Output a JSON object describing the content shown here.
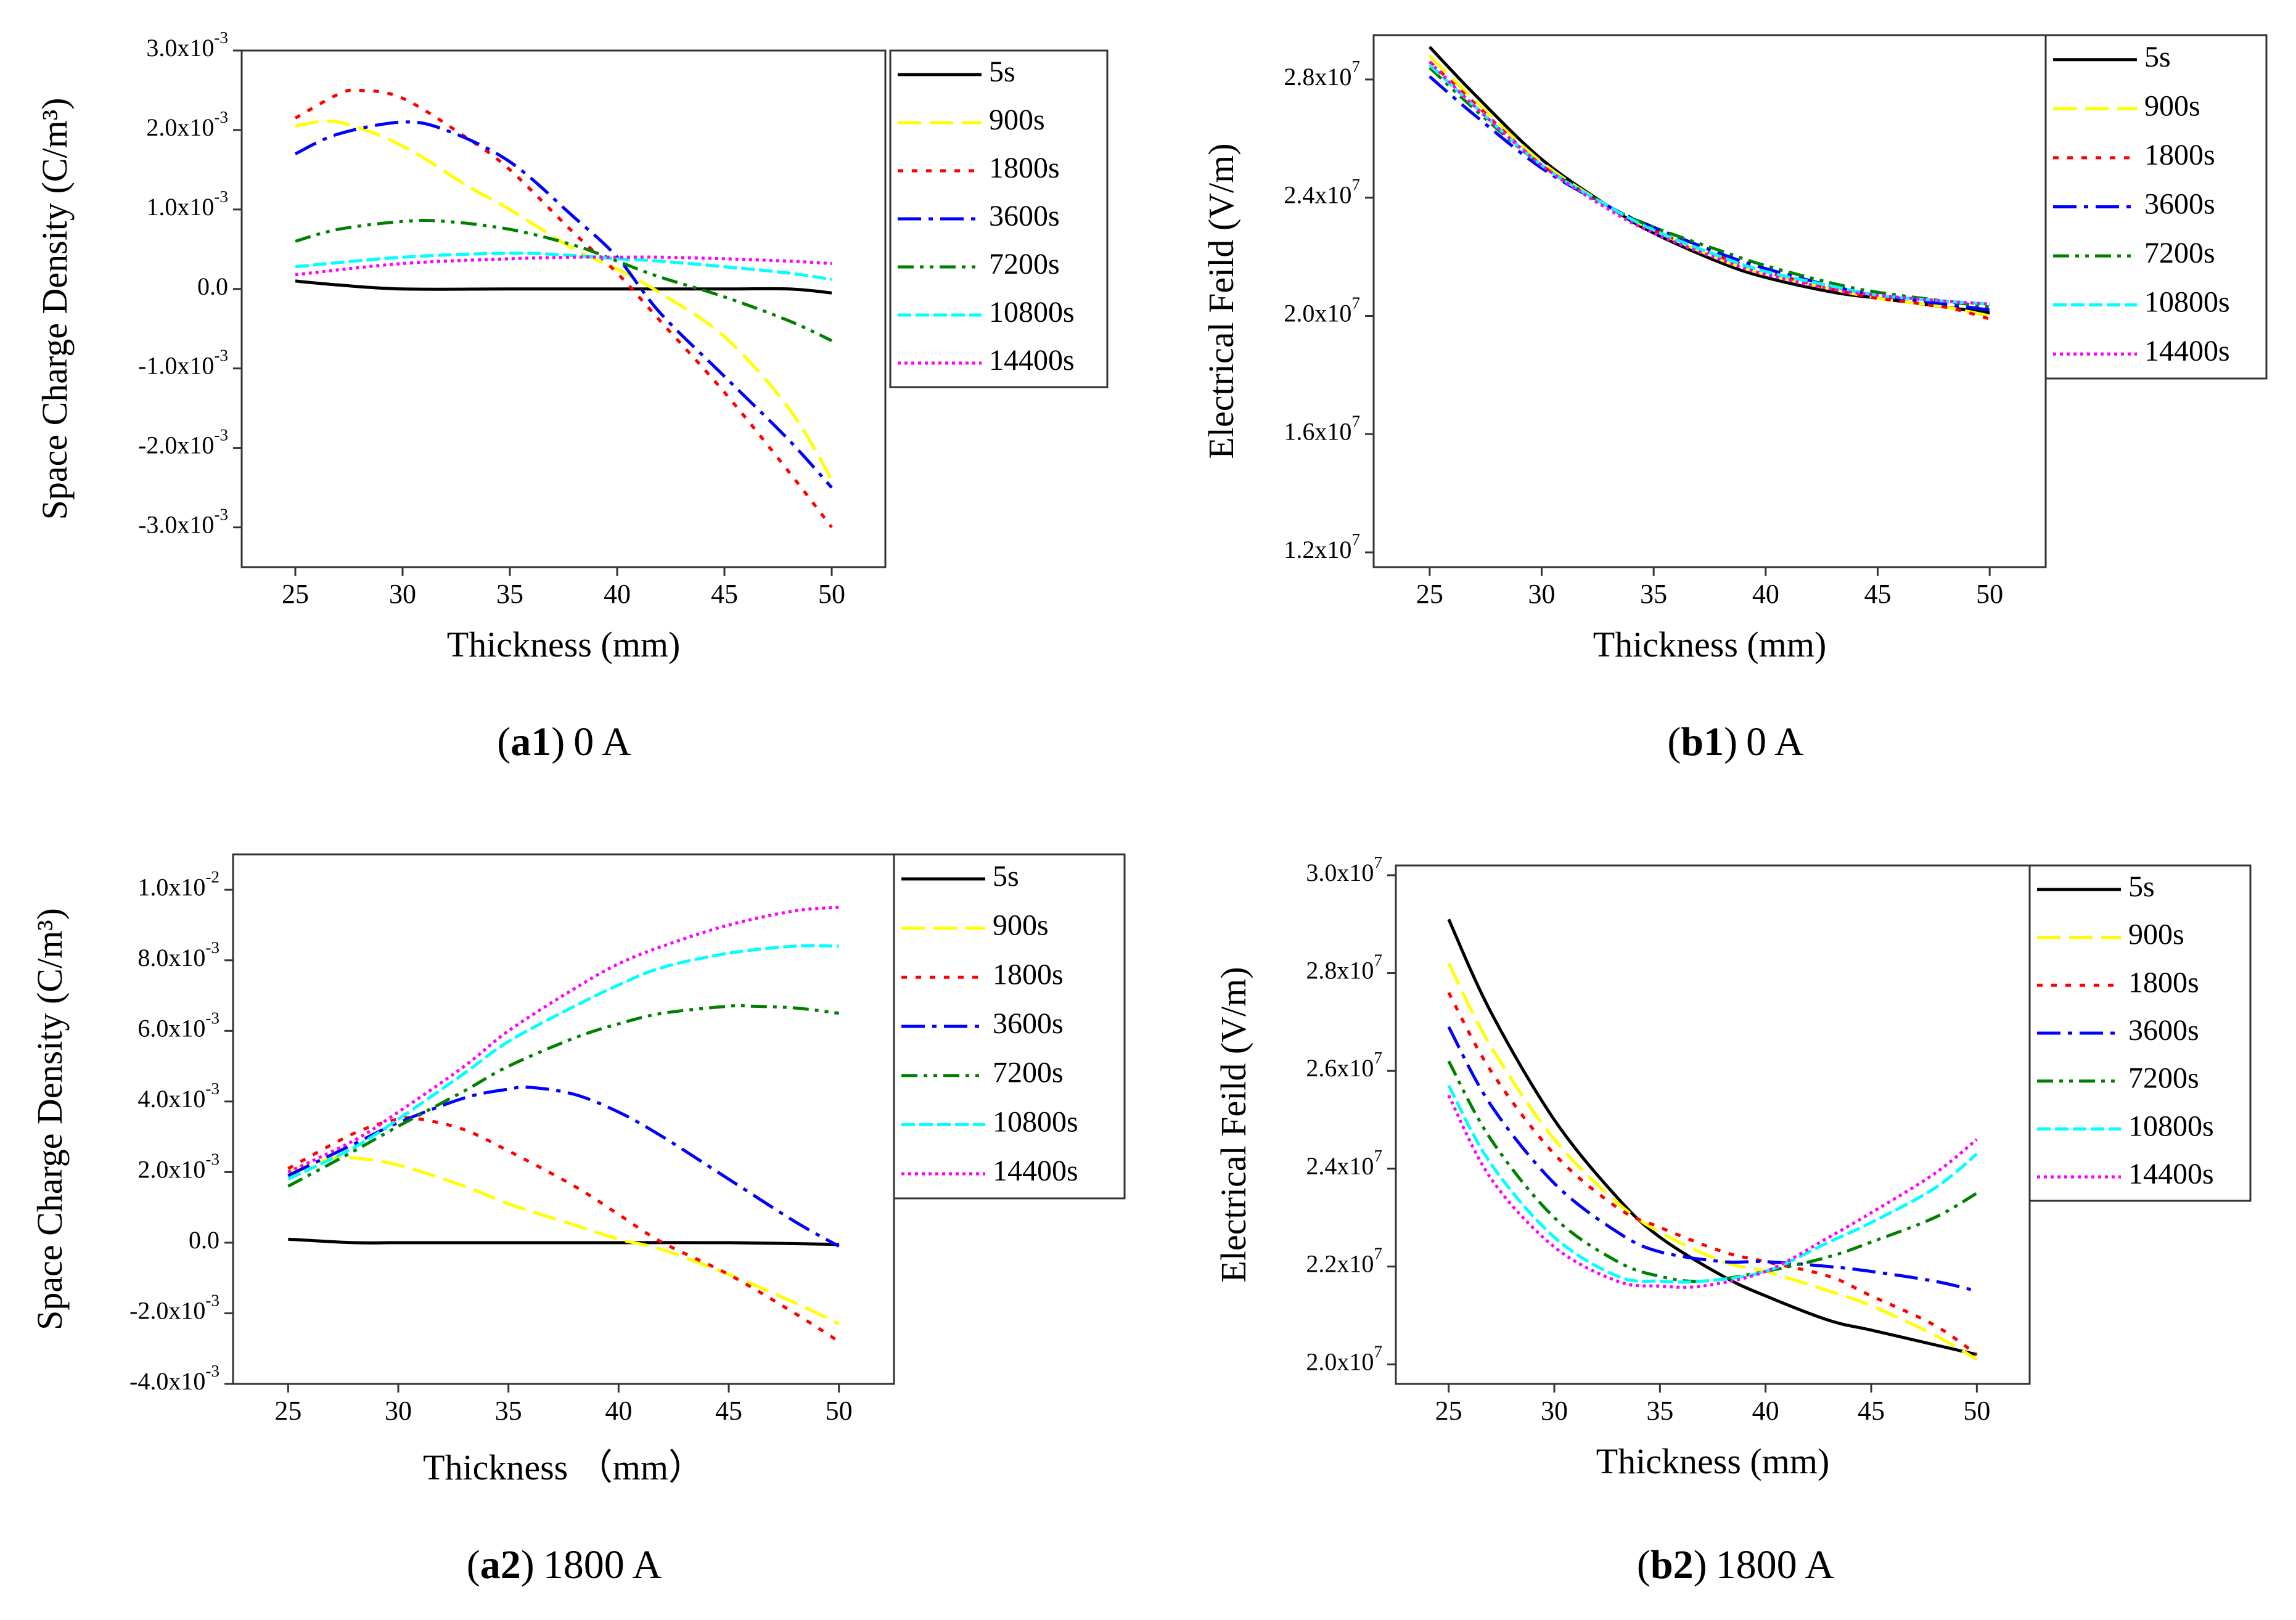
{
  "colors": {
    "5s": "#000000",
    "900s": "#ffff00",
    "1800s": "#ff0000",
    "3600s": "#0000ff",
    "7200s": "#008000",
    "10800s": "#00ffff",
    "14400s": "#ff00ff"
  },
  "chart_data": [
    {
      "id": "a1",
      "type": "line",
      "caption_bold": "a1",
      "caption_rest": "0 A",
      "caption_open": "(",
      "caption_close": ")",
      "xlabel": "Thickness (mm)",
      "ylabel": "Space Charge Density (C/m³)",
      "xlim": [
        22.5,
        52.5
      ],
      "ylim": [
        -3.5,
        3.0
      ],
      "y_scale_note": "values in units of 1e-3",
      "x_ticks": [
        25,
        30,
        35,
        40,
        45,
        50
      ],
      "x_tick_labels": [
        "25",
        "30",
        "35",
        "40",
        "45",
        "50"
      ],
      "y_ticks": [
        3,
        2,
        1,
        0,
        -1,
        -2,
        -3
      ],
      "y_tick_labels": [
        "3.0x10-3",
        "2.0x10-3",
        "1.0x10-3",
        "0.0",
        "-1.0x10-3",
        "-2.0x10-3",
        "-3.0x10-3"
      ],
      "legend": [
        "5s",
        "900s",
        "1800s",
        "3600s",
        "7200s",
        "10800s",
        "14400s"
      ],
      "series": [
        {
          "name": "5s",
          "x": [
            25,
            27,
            30,
            35,
            40,
            45,
            48,
            50
          ],
          "values": [
            0.1,
            0.05,
            0.0,
            0.0,
            0.0,
            0.0,
            0.0,
            -0.05
          ]
        },
        {
          "name": "900s",
          "x": [
            25,
            27,
            30,
            33,
            35,
            38,
            40,
            42,
            45,
            48,
            50
          ],
          "values": [
            2.05,
            2.1,
            1.8,
            1.3,
            1.0,
            0.5,
            0.25,
            -0.05,
            -0.6,
            -1.5,
            -2.4
          ]
        },
        {
          "name": "1800s",
          "x": [
            25,
            27,
            28,
            30,
            33,
            35,
            38,
            40,
            42,
            45,
            48,
            50
          ],
          "values": [
            2.15,
            2.45,
            2.5,
            2.4,
            1.9,
            1.5,
            0.7,
            0.2,
            -0.4,
            -1.3,
            -2.3,
            -3.0
          ]
        },
        {
          "name": "3600s",
          "x": [
            25,
            27,
            30,
            32,
            35,
            38,
            40,
            42,
            45,
            48,
            50
          ],
          "values": [
            1.7,
            1.95,
            2.1,
            2.0,
            1.6,
            0.9,
            0.4,
            -0.3,
            -1.1,
            -1.9,
            -2.5
          ]
        },
        {
          "name": "7200s",
          "x": [
            25,
            27,
            30,
            32,
            35,
            38,
            40,
            42,
            45,
            48,
            50
          ],
          "values": [
            0.6,
            0.75,
            0.85,
            0.85,
            0.75,
            0.55,
            0.35,
            0.15,
            -0.1,
            -0.4,
            -0.65
          ]
        },
        {
          "name": "10800s",
          "x": [
            25,
            30,
            35,
            38,
            40,
            42,
            45,
            48,
            50
          ],
          "values": [
            0.28,
            0.4,
            0.45,
            0.42,
            0.38,
            0.35,
            0.28,
            0.2,
            0.12
          ]
        },
        {
          "name": "14400s",
          "x": [
            25,
            30,
            35,
            38,
            40,
            42,
            45,
            48,
            50
          ],
          "values": [
            0.18,
            0.32,
            0.38,
            0.4,
            0.4,
            0.4,
            0.38,
            0.35,
            0.32
          ]
        }
      ]
    },
    {
      "id": "b1",
      "type": "line",
      "caption_bold": "b1",
      "caption_rest": "0 A",
      "caption_open": "(",
      "caption_close": ")",
      "xlabel": "Thickness (mm)",
      "ylabel": "Electrical Feild (V/m)",
      "xlim": [
        22.5,
        52.5
      ],
      "ylim": [
        1.15,
        2.95
      ],
      "y_scale_note": "values in units of 1e7",
      "x_ticks": [
        25,
        30,
        35,
        40,
        45,
        50
      ],
      "x_tick_labels": [
        "25",
        "30",
        "35",
        "40",
        "45",
        "50"
      ],
      "y_ticks": [
        2.8,
        2.4,
        2.0,
        1.6,
        1.2
      ],
      "y_tick_labels": [
        "2.8x107",
        "2.4x107",
        "2.0x107",
        "1.6x107",
        "1.2x107"
      ],
      "legend": [
        "5s",
        "900s",
        "1800s",
        "3600s",
        "7200s",
        "10800s",
        "14400s"
      ],
      "series": [
        {
          "name": "5s",
          "x": [
            25,
            27,
            30,
            33,
            35,
            38,
            40,
            43,
            45,
            48,
            50
          ],
          "values": [
            2.91,
            2.75,
            2.53,
            2.37,
            2.28,
            2.18,
            2.13,
            2.08,
            2.06,
            2.03,
            2.01
          ]
        },
        {
          "name": "900s",
          "x": [
            25,
            27,
            30,
            33,
            35,
            38,
            40,
            43,
            45,
            48,
            50
          ],
          "values": [
            2.88,
            2.73,
            2.52,
            2.37,
            2.29,
            2.19,
            2.14,
            2.09,
            2.06,
            2.03,
            2.0
          ]
        },
        {
          "name": "1800s",
          "x": [
            25,
            27,
            30,
            33,
            35,
            38,
            40,
            43,
            45,
            48,
            50
          ],
          "values": [
            2.86,
            2.72,
            2.51,
            2.37,
            2.29,
            2.2,
            2.15,
            2.09,
            2.06,
            2.03,
            1.99
          ]
        },
        {
          "name": "3600s",
          "x": [
            25,
            27,
            30,
            33,
            35,
            38,
            40,
            43,
            45,
            48,
            50
          ],
          "values": [
            2.81,
            2.68,
            2.5,
            2.37,
            2.3,
            2.21,
            2.16,
            2.1,
            2.07,
            2.04,
            2.02
          ]
        },
        {
          "name": "7200s",
          "x": [
            25,
            27,
            30,
            33,
            35,
            38,
            40,
            43,
            45,
            48,
            50
          ],
          "values": [
            2.84,
            2.7,
            2.51,
            2.37,
            2.3,
            2.22,
            2.17,
            2.11,
            2.08,
            2.05,
            2.03
          ]
        },
        {
          "name": "10800s",
          "x": [
            25,
            27,
            30,
            33,
            35,
            38,
            40,
            43,
            45,
            48,
            50
          ],
          "values": [
            2.85,
            2.71,
            2.51,
            2.37,
            2.29,
            2.2,
            2.15,
            2.1,
            2.07,
            2.05,
            2.04
          ]
        },
        {
          "name": "14400s",
          "x": [
            25,
            27,
            30,
            33,
            35,
            38,
            40,
            43,
            45,
            48,
            50
          ],
          "values": [
            2.86,
            2.71,
            2.51,
            2.36,
            2.28,
            2.19,
            2.14,
            2.09,
            2.07,
            2.05,
            2.04
          ]
        }
      ]
    },
    {
      "id": "a2",
      "type": "line",
      "caption_bold": "a2",
      "caption_rest": "1800 A",
      "caption_open": "(",
      "caption_close": ")",
      "xlabel": "Thickness （mm）",
      "ylabel": "Space Charge Density (C/m³)",
      "xlim": [
        22.5,
        52.5
      ],
      "ylim": [
        -4.0,
        11.0
      ],
      "y_scale_note": "values in units of 1e-3",
      "x_ticks": [
        25,
        30,
        35,
        40,
        45,
        50
      ],
      "x_tick_labels": [
        "25",
        "30",
        "35",
        "40",
        "45",
        "50"
      ],
      "y_ticks": [
        10,
        8,
        6,
        4,
        2,
        0,
        -2,
        -4
      ],
      "y_tick_labels": [
        "1.0x10-2",
        "8.0x10-3",
        "6.0x10-3",
        "4.0x10-3",
        "2.0x10-3",
        "0.0",
        "-2.0x10-3",
        "-4.0x10-3"
      ],
      "legend": [
        "5s",
        "900s",
        "1800s",
        "3600s",
        "7200s",
        "10800s",
        "14400s"
      ],
      "series": [
        {
          "name": "5s",
          "x": [
            25,
            28,
            30,
            35,
            40,
            45,
            50
          ],
          "values": [
            0.1,
            0.0,
            0.0,
            0.0,
            0.0,
            0.0,
            -0.05
          ]
        },
        {
          "name": "900s",
          "x": [
            25,
            27,
            28,
            30,
            33,
            35,
            38,
            40,
            42,
            45,
            48,
            50
          ],
          "values": [
            2.0,
            2.4,
            2.4,
            2.2,
            1.6,
            1.1,
            0.5,
            0.1,
            -0.2,
            -0.9,
            -1.7,
            -2.3
          ]
        },
        {
          "name": "1800s",
          "x": [
            25,
            28,
            30,
            31,
            33,
            35,
            38,
            40,
            42,
            45,
            48,
            50
          ],
          "values": [
            2.1,
            3.1,
            3.5,
            3.5,
            3.2,
            2.6,
            1.6,
            0.8,
            0.0,
            -0.9,
            -2.0,
            -2.8
          ]
        },
        {
          "name": "3600s",
          "x": [
            25,
            28,
            30,
            33,
            35,
            36,
            38,
            40,
            42,
            45,
            48,
            50
          ],
          "values": [
            1.9,
            2.8,
            3.4,
            4.1,
            4.35,
            4.4,
            4.2,
            3.7,
            3.0,
            1.8,
            0.6,
            -0.1
          ]
        },
        {
          "name": "7200s",
          "x": [
            25,
            28,
            30,
            33,
            35,
            38,
            40,
            42,
            45,
            46,
            48,
            50
          ],
          "values": [
            1.6,
            2.6,
            3.3,
            4.3,
            5.0,
            5.8,
            6.2,
            6.5,
            6.7,
            6.7,
            6.65,
            6.5
          ]
        },
        {
          "name": "10800s",
          "x": [
            25,
            28,
            30,
            33,
            35,
            38,
            40,
            42,
            45,
            48,
            50
          ],
          "values": [
            1.8,
            2.7,
            3.5,
            4.8,
            5.7,
            6.7,
            7.3,
            7.8,
            8.2,
            8.4,
            8.4
          ]
        },
        {
          "name": "14400s",
          "x": [
            25,
            28,
            30,
            33,
            35,
            38,
            40,
            42,
            45,
            48,
            50
          ],
          "values": [
            2.0,
            2.9,
            3.7,
            5.0,
            6.0,
            7.2,
            7.9,
            8.4,
            9.0,
            9.4,
            9.5
          ]
        }
      ]
    },
    {
      "id": "b2",
      "type": "line",
      "caption_bold": "b2",
      "caption_rest": "1800 A",
      "caption_open": "(",
      "caption_close": ")",
      "xlabel": "Thickness (mm)",
      "ylabel": "Electrical Feild (V/m)",
      "xlim": [
        22.5,
        52.5
      ],
      "ylim": [
        1.96,
        3.02
      ],
      "y_scale_note": "values in units of 1e7",
      "x_ticks": [
        25,
        30,
        35,
        40,
        45,
        50
      ],
      "x_tick_labels": [
        "25",
        "30",
        "35",
        "40",
        "45",
        "50"
      ],
      "y_ticks": [
        3.0,
        2.8,
        2.6,
        2.4,
        2.2,
        2.0
      ],
      "y_tick_labels": [
        "3.0x107",
        "2.8x107",
        "2.6x107",
        "2.4x107",
        "2.2x107",
        "2.0x107"
      ],
      "legend": [
        "5s",
        "900s",
        "1800s",
        "3600s",
        "7200s",
        "10800s",
        "14400s"
      ],
      "series": [
        {
          "name": "5s",
          "x": [
            25,
            27,
            30,
            33,
            35,
            38,
            40,
            43,
            45,
            48,
            50
          ],
          "values": [
            2.91,
            2.72,
            2.5,
            2.34,
            2.26,
            2.18,
            2.14,
            2.09,
            2.07,
            2.04,
            2.02
          ]
        },
        {
          "name": "900s",
          "x": [
            25,
            27,
            30,
            33,
            35,
            38,
            40,
            43,
            45,
            48,
            50
          ],
          "values": [
            2.82,
            2.65,
            2.46,
            2.33,
            2.27,
            2.21,
            2.19,
            2.15,
            2.12,
            2.06,
            2.01
          ]
        },
        {
          "name": "1800s",
          "x": [
            25,
            27,
            30,
            33,
            35,
            38,
            40,
            43,
            45,
            48,
            50
          ],
          "values": [
            2.76,
            2.6,
            2.43,
            2.32,
            2.28,
            2.23,
            2.21,
            2.18,
            2.14,
            2.08,
            2.02
          ]
        },
        {
          "name": "3600s",
          "x": [
            25,
            27,
            30,
            33,
            35,
            38,
            40,
            43,
            45,
            48,
            50
          ],
          "values": [
            2.69,
            2.53,
            2.37,
            2.27,
            2.23,
            2.21,
            2.21,
            2.2,
            2.19,
            2.17,
            2.15
          ]
        },
        {
          "name": "7200s",
          "x": [
            25,
            27,
            30,
            33,
            35,
            37,
            40,
            43,
            45,
            48,
            50
          ],
          "values": [
            2.62,
            2.46,
            2.3,
            2.21,
            2.18,
            2.17,
            2.19,
            2.22,
            2.25,
            2.3,
            2.35
          ]
        },
        {
          "name": "10800s",
          "x": [
            25,
            27,
            30,
            33,
            35,
            37,
            40,
            43,
            45,
            48,
            50
          ],
          "values": [
            2.57,
            2.41,
            2.26,
            2.18,
            2.17,
            2.17,
            2.19,
            2.25,
            2.29,
            2.36,
            2.43
          ]
        },
        {
          "name": "14400s",
          "x": [
            25,
            27,
            30,
            33,
            35,
            37,
            40,
            43,
            45,
            48,
            50
          ],
          "values": [
            2.55,
            2.38,
            2.24,
            2.17,
            2.16,
            2.16,
            2.19,
            2.26,
            2.31,
            2.39,
            2.46
          ]
        }
      ]
    }
  ]
}
